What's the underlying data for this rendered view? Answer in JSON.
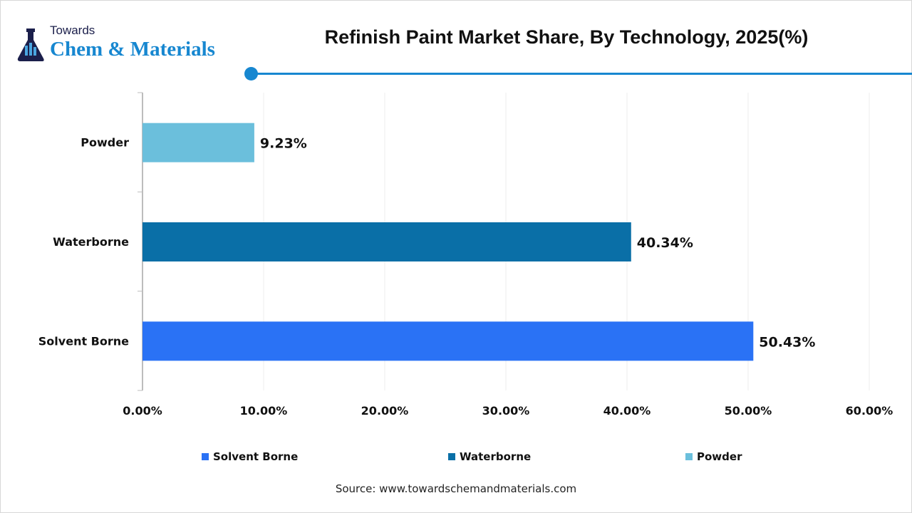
{
  "logo": {
    "line1": "Towards",
    "line2": "Chem & Materials"
  },
  "chart_data": {
    "type": "bar",
    "orientation": "horizontal",
    "title": "Refinish Paint Market Share, By Technology, 2025(%)",
    "categories": [
      "Powder",
      "Waterborne",
      "Solvent Borne"
    ],
    "values": [
      9.23,
      40.34,
      50.43
    ],
    "data_labels": [
      "9.23%",
      "40.34%",
      "50.43%"
    ],
    "colors": [
      "#6bbfdc",
      "#0a6fa7",
      "#2a72f5"
    ],
    "xlim": [
      0,
      60
    ],
    "x_ticks": [
      0,
      10,
      20,
      30,
      40,
      50,
      60
    ],
    "x_tick_labels": [
      "0.00%",
      "10.00%",
      "20.00%",
      "30.00%",
      "40.00%",
      "50.00%",
      "60.00%"
    ],
    "grid": "vertical",
    "legend_position": "bottom",
    "legend": [
      {
        "name": "Solvent Borne",
        "color": "#2a72f5"
      },
      {
        "name": "Waterborne",
        "color": "#0a6fa7"
      },
      {
        "name": "Powder",
        "color": "#6bbfdc"
      }
    ]
  },
  "source": "Source: www.towardschemandmaterials.com"
}
